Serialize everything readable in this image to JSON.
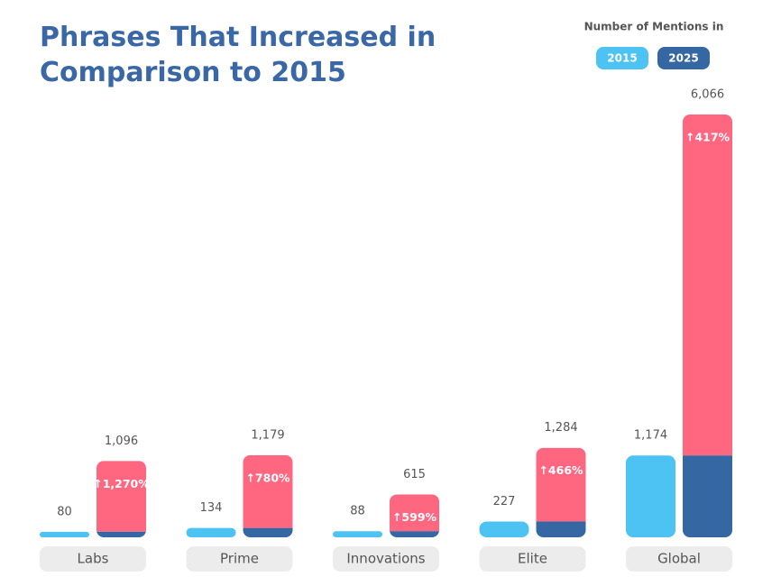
{
  "chart_data": {
    "type": "bar",
    "title": [
      "Phrases That Increased in",
      "Comparison to 2015"
    ],
    "legend_title": "Number of Mentions in",
    "categories": [
      "Labs",
      "Prime",
      "Innovations",
      "Elite",
      "Global"
    ],
    "series": [
      {
        "name": "2015",
        "color": "#4dc3f3",
        "values": [
          80,
          134,
          88,
          227,
          1174
        ],
        "value_labels": [
          "80",
          "134",
          "88",
          "227",
          "1,174"
        ]
      },
      {
        "name": "2025",
        "color": "#3567a3",
        "values": [
          1096,
          1179,
          615,
          1284,
          6066
        ],
        "value_labels": [
          "1,096",
          "1,179",
          "615",
          "1,284",
          "6,066"
        ]
      }
    ],
    "change_labels": [
      "↑1,270%",
      "↑780%",
      "↑599%",
      "↑466%",
      "↑417%"
    ],
    "increase_color": "#ff6680"
  }
}
